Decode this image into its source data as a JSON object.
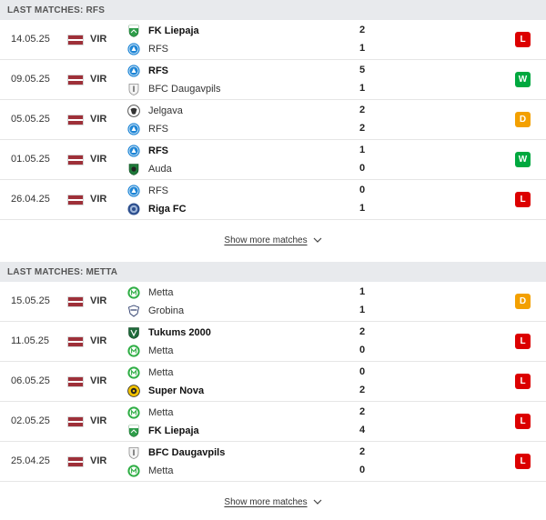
{
  "colors": {
    "loss": "#dc0000",
    "win": "#00a83f",
    "draw": "#f3a000",
    "header_bg": "#e8eaed"
  },
  "sections": [
    {
      "title": "LAST MATCHES: RFS",
      "show_more": "Show more matches",
      "matches": [
        {
          "date": "14.05.25",
          "competition": "VIR",
          "home": {
            "name": "FK Liepaja",
            "logo": "fk-liepaja-logo",
            "score": "2",
            "winner": true
          },
          "away": {
            "name": "RFS",
            "logo": "rfs-logo",
            "score": "1",
            "winner": false
          },
          "result": "L"
        },
        {
          "date": "09.05.25",
          "competition": "VIR",
          "home": {
            "name": "RFS",
            "logo": "rfs-logo",
            "score": "5",
            "winner": true
          },
          "away": {
            "name": "BFC Daugavpils",
            "logo": "bfc-daugavpils-logo",
            "score": "1",
            "winner": false
          },
          "result": "W"
        },
        {
          "date": "05.05.25",
          "competition": "VIR",
          "home": {
            "name": "Jelgava",
            "logo": "jelgava-logo",
            "score": "2",
            "winner": false
          },
          "away": {
            "name": "RFS",
            "logo": "rfs-logo",
            "score": "2",
            "winner": false
          },
          "result": "D"
        },
        {
          "date": "01.05.25",
          "competition": "VIR",
          "home": {
            "name": "RFS",
            "logo": "rfs-logo",
            "score": "1",
            "winner": true
          },
          "away": {
            "name": "Auda",
            "logo": "auda-logo",
            "score": "0",
            "winner": false
          },
          "result": "W"
        },
        {
          "date": "26.04.25",
          "competition": "VIR",
          "home": {
            "name": "RFS",
            "logo": "rfs-logo",
            "score": "0",
            "winner": false
          },
          "away": {
            "name": "Riga FC",
            "logo": "riga-fc-logo",
            "score": "1",
            "winner": true
          },
          "result": "L"
        }
      ]
    },
    {
      "title": "LAST MATCHES: METTA",
      "show_more": "Show more matches",
      "matches": [
        {
          "date": "15.05.25",
          "competition": "VIR",
          "home": {
            "name": "Metta",
            "logo": "metta-logo",
            "score": "1",
            "winner": false
          },
          "away": {
            "name": "Grobina",
            "logo": "grobina-logo",
            "score": "1",
            "winner": false
          },
          "result": "D"
        },
        {
          "date": "11.05.25",
          "competition": "VIR",
          "home": {
            "name": "Tukums 2000",
            "logo": "tukums-logo",
            "score": "2",
            "winner": true
          },
          "away": {
            "name": "Metta",
            "logo": "metta-logo",
            "score": "0",
            "winner": false
          },
          "result": "L"
        },
        {
          "date": "06.05.25",
          "competition": "VIR",
          "home": {
            "name": "Metta",
            "logo": "metta-logo",
            "score": "0",
            "winner": false
          },
          "away": {
            "name": "Super Nova",
            "logo": "super-nova-logo",
            "score": "2",
            "winner": true
          },
          "result": "L"
        },
        {
          "date": "02.05.25",
          "competition": "VIR",
          "home": {
            "name": "Metta",
            "logo": "metta-logo",
            "score": "2",
            "winner": false
          },
          "away": {
            "name": "FK Liepaja",
            "logo": "fk-liepaja-logo",
            "score": "4",
            "winner": true
          },
          "result": "L"
        },
        {
          "date": "25.04.25",
          "competition": "VIR",
          "home": {
            "name": "BFC Daugavpils",
            "logo": "bfc-daugavpils-logo",
            "score": "2",
            "winner": true
          },
          "away": {
            "name": "Metta",
            "logo": "metta-logo",
            "score": "0",
            "winner": false
          },
          "result": "L"
        }
      ]
    }
  ]
}
